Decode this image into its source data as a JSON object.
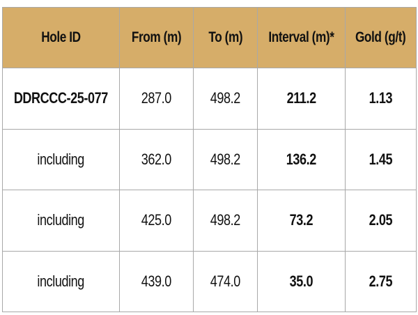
{
  "table": {
    "headers": [
      "Hole ID",
      "From (m)",
      "To (m)",
      "Interval (m)*",
      "Gold (g/t)"
    ],
    "rows": [
      {
        "hole_id": "DDRCCC-25-077",
        "from": "287.0",
        "to": "498.2",
        "interval": "211.2",
        "gold": "1.13"
      },
      {
        "hole_id": "including",
        "from": "362.0",
        "to": "498.2",
        "interval": "136.2",
        "gold": "1.45"
      },
      {
        "hole_id": "including",
        "from": "425.0",
        "to": "498.2",
        "interval": "73.2",
        "gold": "2.05"
      },
      {
        "hole_id": "including",
        "from": "439.0",
        "to": "474.0",
        "interval": "35.0",
        "gold": "2.75"
      }
    ]
  },
  "colors": {
    "header_background": "#d6ad69",
    "border": "#a8a8a8",
    "text": "#111111"
  }
}
